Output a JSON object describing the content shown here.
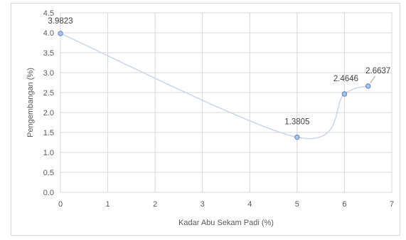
{
  "chart_data": {
    "type": "scatter",
    "title": "",
    "xlabel": "Kadar Abu Sekam Padi (%)",
    "ylabel": "Pengembangan (%)",
    "xlim": [
      0,
      7
    ],
    "ylim": [
      0,
      4.5
    ],
    "x_ticks": [
      0,
      1,
      2,
      3,
      4,
      5,
      6,
      7
    ],
    "y_ticks": [
      "0.0",
      "0.5",
      "1.0",
      "1.5",
      "2.0",
      "2.5",
      "3.0",
      "3.5",
      "4.0",
      "4.5"
    ],
    "grid": true,
    "smoothed_line": true,
    "series": [
      {
        "x": [
          0,
          5,
          6,
          6.5
        ],
        "y": [
          3.9823,
          1.3805,
          2.4646,
          2.6637
        ],
        "labels": [
          "3.9823",
          "1.3805",
          "2.4646",
          "2.6637"
        ]
      }
    ],
    "colors": {
      "line": "#c9d6ea",
      "marker_fill": "#a9c4e8",
      "marker_stroke": "#5b83c2",
      "grid": "#d9d9d9"
    }
  }
}
